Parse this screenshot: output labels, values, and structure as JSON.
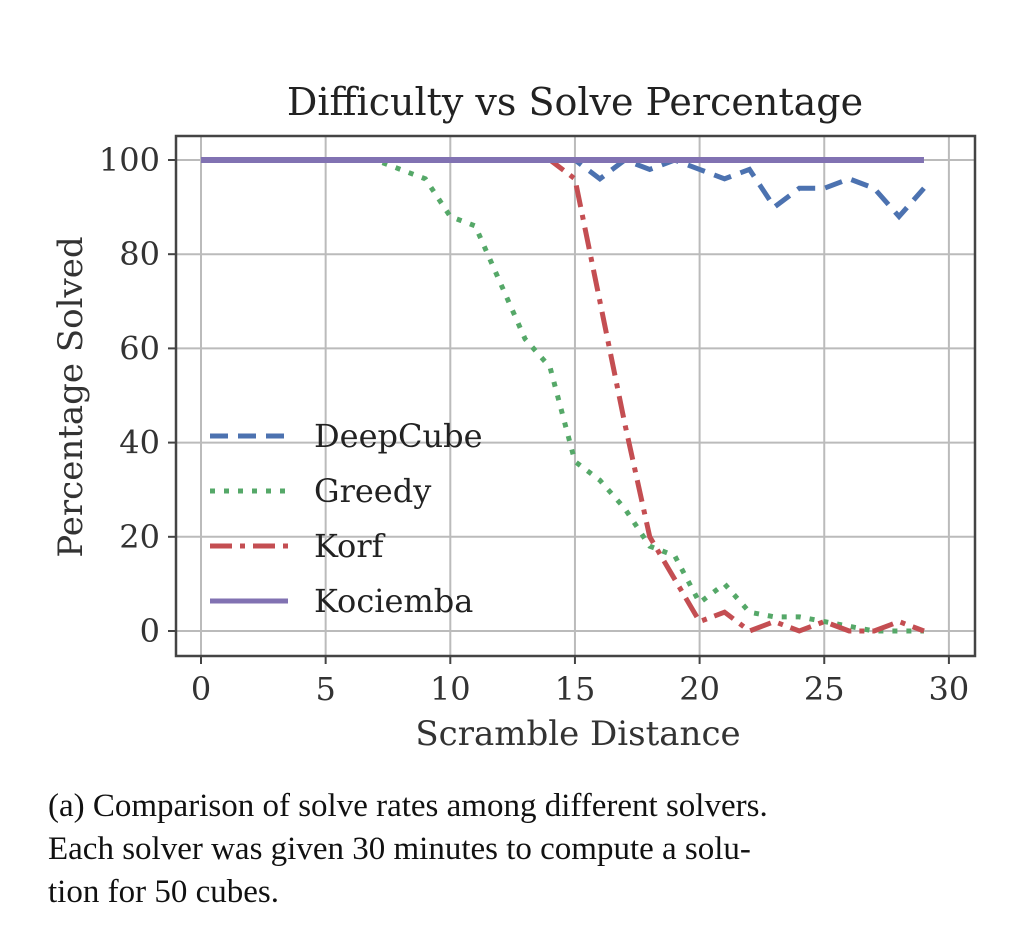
{
  "chart_data": {
    "type": "line",
    "title": "Difficulty vs Solve Percentage",
    "xlabel": "Scramble Distance",
    "ylabel": "Percentage Solved",
    "xlim": [
      -1,
      31
    ],
    "ylim": [
      -5,
      105
    ],
    "xticks": [
      0,
      5,
      10,
      15,
      20,
      25,
      30
    ],
    "yticks": [
      0,
      20,
      40,
      60,
      80,
      100
    ],
    "grid": true,
    "legend": "center-left",
    "x": [
      0,
      1,
      2,
      3,
      4,
      5,
      6,
      7,
      8,
      9,
      10,
      11,
      12,
      13,
      14,
      15,
      16,
      17,
      18,
      19,
      20,
      21,
      22,
      23,
      24,
      25,
      26,
      27,
      28,
      29
    ],
    "series": [
      {
        "name": "DeepCube",
        "color": "#4c72b0",
        "style": "dashed",
        "values": [
          100,
          100,
          100,
          100,
          100,
          100,
          100,
          100,
          100,
          100,
          100,
          100,
          100,
          100,
          100,
          100,
          96,
          100,
          98,
          100,
          98,
          96,
          98,
          90,
          94,
          94,
          96,
          94,
          88,
          94
        ]
      },
      {
        "name": "Greedy",
        "color": "#55a868",
        "style": "dotted",
        "values": [
          100,
          100,
          100,
          100,
          100,
          100,
          100,
          100,
          98,
          96,
          88,
          86,
          74,
          62,
          56,
          36,
          32,
          26,
          18,
          16,
          6,
          10,
          4,
          3,
          3,
          2,
          1,
          0,
          0,
          0
        ]
      },
      {
        "name": "Korf",
        "color": "#c44e52",
        "style": "dashdot",
        "values": [
          100,
          100,
          100,
          100,
          100,
          100,
          100,
          100,
          100,
          100,
          100,
          100,
          100,
          100,
          100,
          96,
          70,
          44,
          20,
          11,
          2,
          4,
          0,
          2,
          0,
          2,
          0,
          0,
          2,
          0
        ]
      },
      {
        "name": "Kociemba",
        "color": "#8172b2",
        "style": "solid",
        "values": [
          100,
          100,
          100,
          100,
          100,
          100,
          100,
          100,
          100,
          100,
          100,
          100,
          100,
          100,
          100,
          100,
          100,
          100,
          100,
          100,
          100,
          100,
          100,
          100,
          100,
          100,
          100,
          100,
          100,
          100
        ]
      }
    ]
  },
  "caption": [
    "(a) Comparison of solve rates among different solvers.",
    "Each solver was given 30 minutes to compute a solu-",
    "tion for 50 cubes."
  ]
}
